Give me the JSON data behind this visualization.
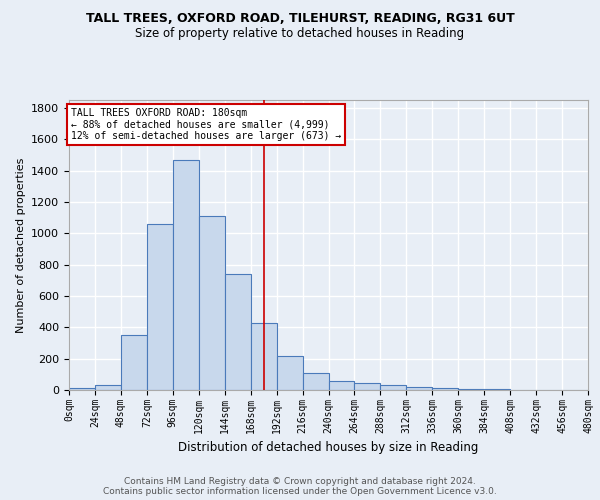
{
  "title": "TALL TREES, OXFORD ROAD, TILEHURST, READING, RG31 6UT",
  "subtitle": "Size of property relative to detached houses in Reading",
  "xlabel": "Distribution of detached houses by size in Reading",
  "ylabel": "Number of detached properties",
  "footnote1": "Contains HM Land Registry data © Crown copyright and database right 2024.",
  "footnote2": "Contains public sector information licensed under the Open Government Licence v3.0.",
  "bin_edges": [
    0,
    24,
    48,
    72,
    96,
    120,
    144,
    168,
    192,
    216,
    240,
    264,
    288,
    312,
    336,
    360,
    384,
    408,
    432,
    456,
    480
  ],
  "bar_heights": [
    10,
    35,
    350,
    1060,
    1470,
    1110,
    740,
    430,
    220,
    110,
    55,
    45,
    30,
    18,
    12,
    8,
    5,
    3,
    2,
    2
  ],
  "bar_color": "#c8d8ec",
  "bar_edge_color": "#4a7aba",
  "bg_color": "#e8eef6",
  "grid_color": "#ffffff",
  "vline_x": 180,
  "vline_color": "#cc0000",
  "annotation_title": "TALL TREES OXFORD ROAD: 180sqm",
  "annotation_line1": "← 88% of detached houses are smaller (4,999)",
  "annotation_line2": "12% of semi-detached houses are larger (673) →",
  "annotation_box_color": "#ffffff",
  "annotation_box_edge": "#cc0000",
  "ylim": [
    0,
    1850
  ],
  "tick_labels": [
    "0sqm",
    "24sqm",
    "48sqm",
    "72sqm",
    "96sqm",
    "120sqm",
    "144sqm",
    "168sqm",
    "192sqm",
    "216sqm",
    "240sqm",
    "264sqm",
    "288sqm",
    "312sqm",
    "336sqm",
    "360sqm",
    "384sqm",
    "408sqm",
    "432sqm",
    "456sqm",
    "480sqm"
  ]
}
